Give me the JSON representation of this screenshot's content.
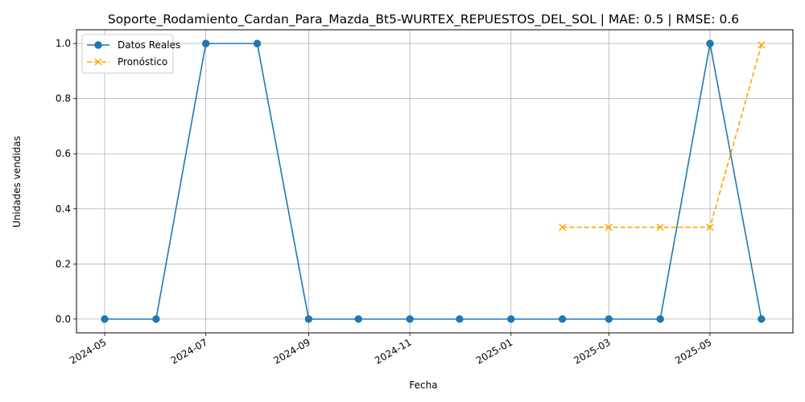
{
  "chart_data": {
    "type": "line",
    "title": "Soporte_Rodamiento_Cardan_Para_Mazda_Bt5-WURTEX_REPUESTOS_DEL_SOL | MAE: 0.5 | RMSE: 0.6",
    "xlabel": "Fecha",
    "ylabel": "Unidades vendidas",
    "ylim": [
      -0.05,
      1.05
    ],
    "xlim": [
      "2024-04-14",
      "2025-06-20"
    ],
    "grid": true,
    "legend_position": "upper-left",
    "x_ticks": [
      "2024-05",
      "2024-07",
      "2024-09",
      "2024-11",
      "2025-01",
      "2025-03",
      "2025-05"
    ],
    "y_ticks": [
      "0.0",
      "0.2",
      "0.4",
      "0.6",
      "0.8",
      "1.0"
    ],
    "series": [
      {
        "name": "Datos Reales",
        "color": "#1f77b4",
        "line_style": "solid",
        "marker": "circle",
        "x": [
          "2024-05-01",
          "2024-06-01",
          "2024-07-01",
          "2024-08-01",
          "2024-09-01",
          "2024-10-01",
          "2024-11-01",
          "2024-12-01",
          "2025-01-01",
          "2025-02-01",
          "2025-03-01",
          "2025-04-01",
          "2025-05-01",
          "2025-06-01"
        ],
        "y": [
          0,
          0,
          1,
          1,
          0,
          0,
          0,
          0,
          0,
          0,
          0,
          0,
          1,
          0
        ]
      },
      {
        "name": "Pronóstico",
        "color": "#ffa500",
        "line_style": "dashed",
        "marker": "x",
        "x": [
          "2025-02-01",
          "2025-03-01",
          "2025-04-01",
          "2025-05-01",
          "2025-06-01"
        ],
        "y": [
          0.333,
          0.333,
          0.333,
          0.333,
          0.995
        ]
      }
    ]
  }
}
